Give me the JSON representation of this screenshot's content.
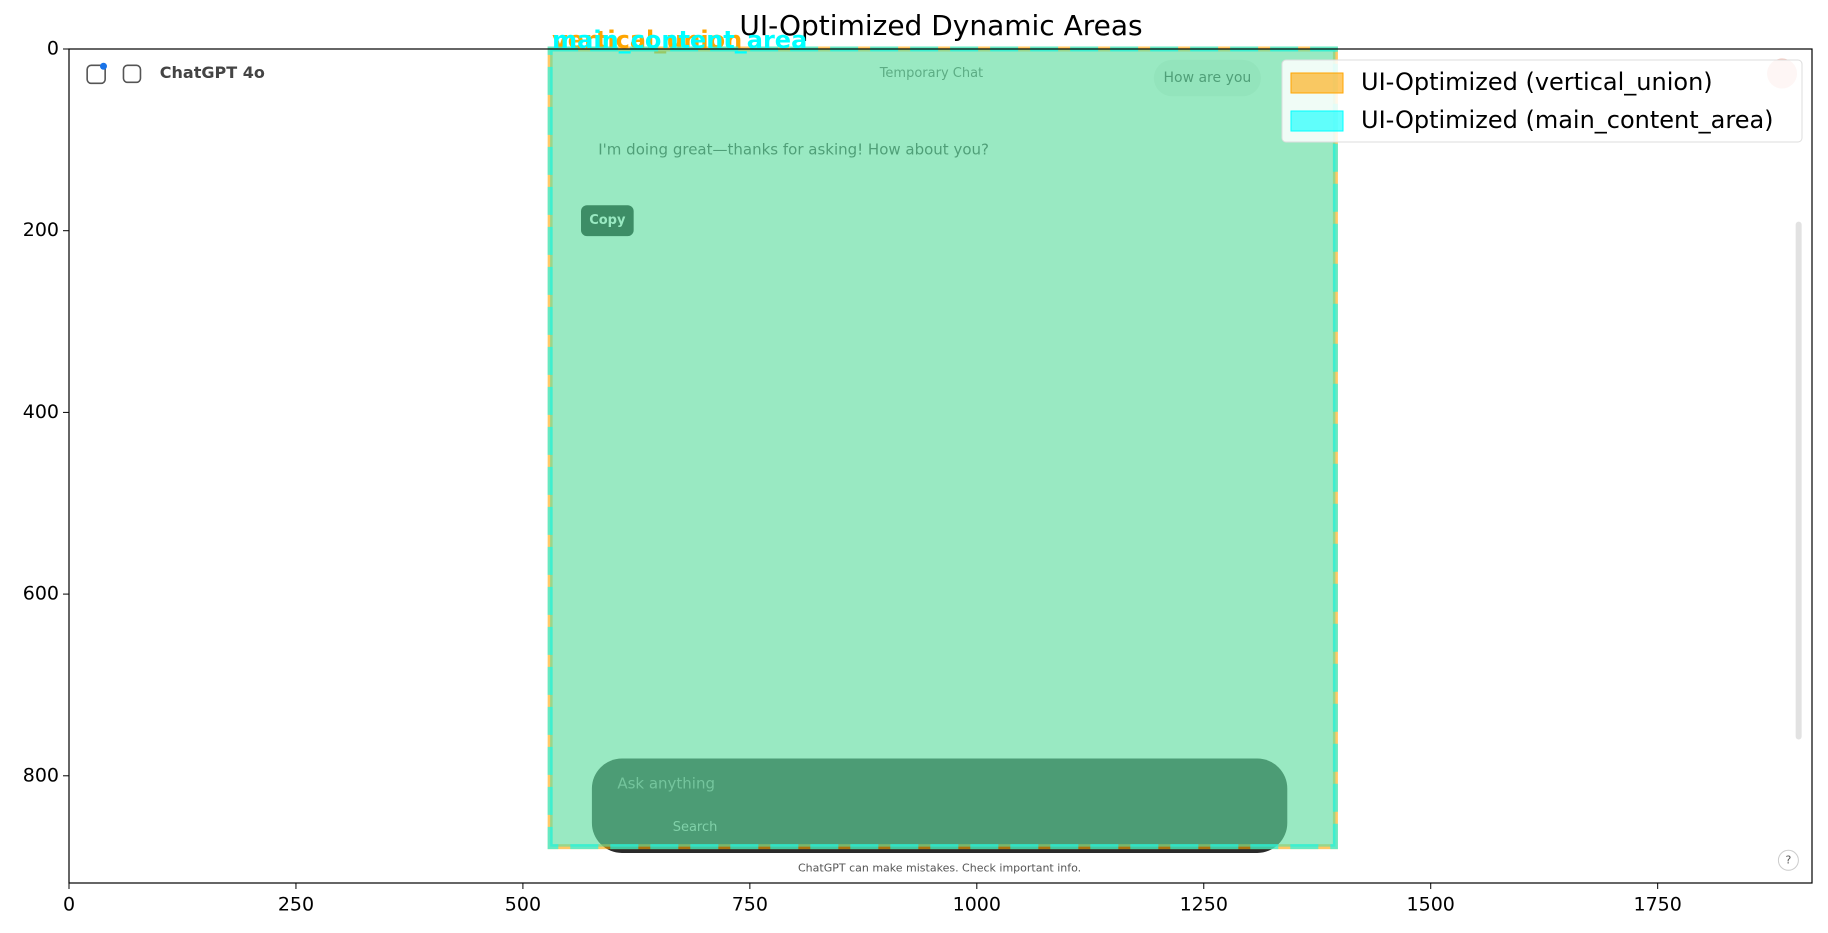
{
  "chart_data": {
    "type": "image-regions",
    "title": "UI-Optimized Dynamic Areas",
    "xlim": [
      0,
      1920
    ],
    "ylim": [
      918,
      0
    ],
    "xticks": [
      0,
      250,
      500,
      750,
      1000,
      1250,
      1500,
      1750
    ],
    "yticks": [
      0,
      200,
      400,
      600,
      800
    ],
    "legend": "upper right",
    "regions": [
      {
        "name": "UI-Optimized (vertical_union)",
        "label": "vertical_union",
        "color": "orange",
        "x": [
          530,
          1395
        ],
        "y": [
          0,
          878
        ],
        "edge": "solid"
      },
      {
        "name": "UI-Optimized (main_content_area)",
        "label": "main_content_area",
        "color": "cyan",
        "x": [
          530,
          1395
        ],
        "y": [
          0,
          878
        ],
        "edge": "dashed"
      }
    ],
    "screenshot": {
      "model": "ChatGPT 4o",
      "header": "Temporary Chat",
      "user_message": "How are you",
      "assistant_message": "I'm doing great—thanks for asking! How about you?",
      "tooltip": "Copy",
      "input_placeholder": "Ask anything",
      "search_button": "Search",
      "footer": "ChatGPT can make mistakes. Check important info.",
      "help": "?"
    }
  }
}
